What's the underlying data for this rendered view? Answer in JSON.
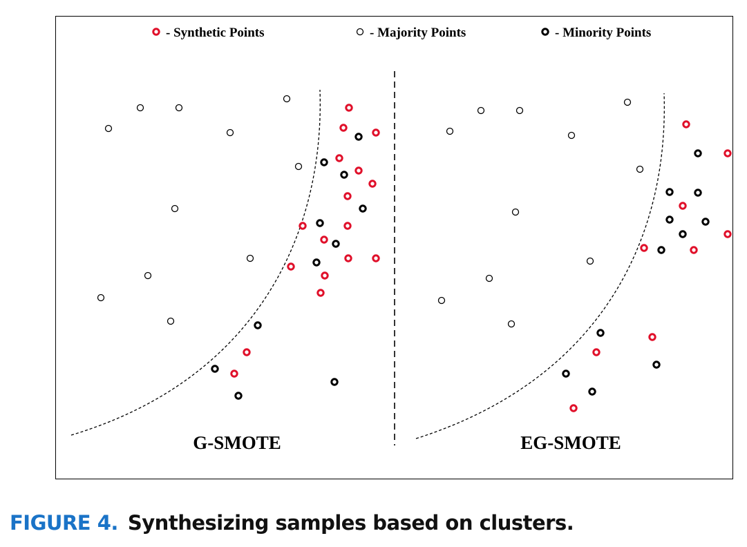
{
  "legend": {
    "synthetic": "- Synthetic Points",
    "majority": "- Majority Points",
    "minority": "- Minority Points"
  },
  "colors": {
    "synthetic": "#e0102a",
    "majority": "#000000",
    "minority": "#000000"
  },
  "panels": {
    "left_label": "G-SMOTE",
    "right_label": "EG-SMOTE"
  },
  "caption": {
    "label": "FIGURE 4.",
    "text": "Synthesizing samples based on clusters."
  }
}
